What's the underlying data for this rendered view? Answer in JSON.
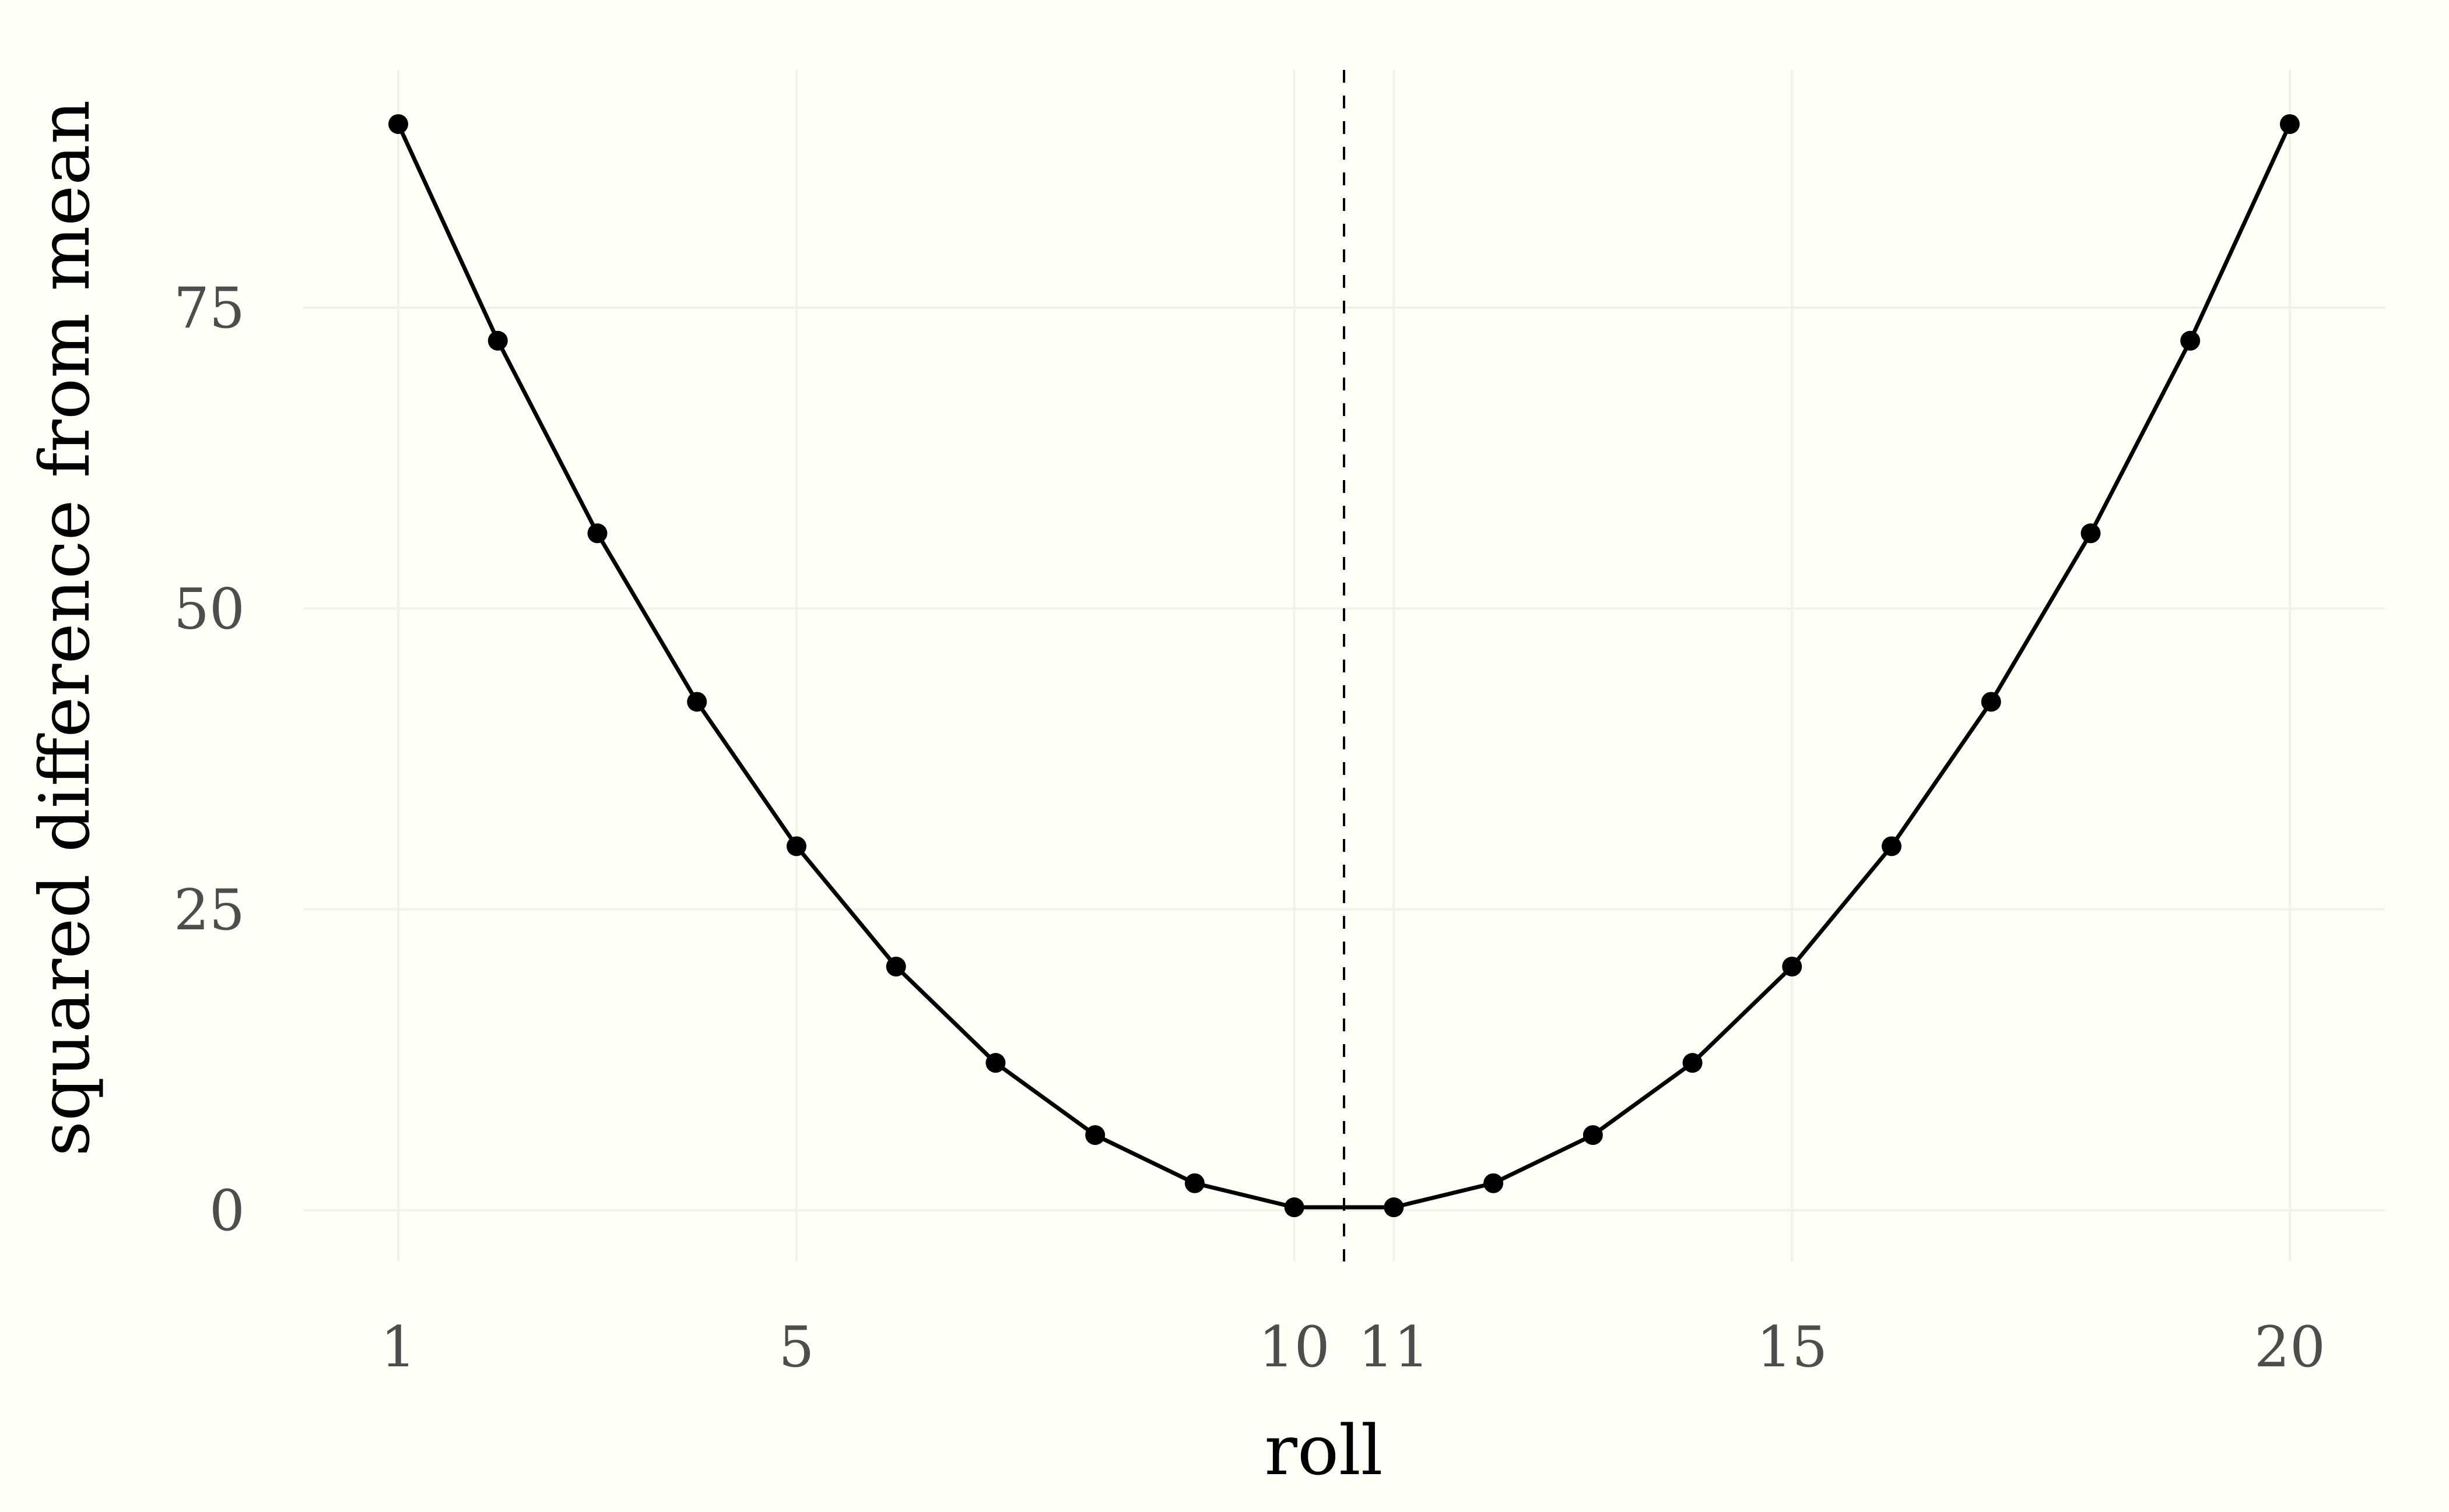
{
  "chart_data": {
    "type": "line",
    "title": "",
    "xlabel": "roll",
    "ylabel": "squared difference from mean",
    "x": [
      1,
      2,
      3,
      4,
      5,
      6,
      7,
      8,
      9,
      10,
      11,
      12,
      13,
      14,
      15,
      16,
      17,
      18,
      19,
      20
    ],
    "series": [
      {
        "values": [
          90.25,
          72.25,
          56.25,
          42.25,
          30.25,
          20.25,
          12.25,
          6.25,
          2.25,
          0.25,
          0.25,
          2.25,
          6.25,
          12.25,
          20.25,
          30.25,
          42.25,
          56.25,
          72.25,
          90.25
        ],
        "markers": true,
        "color": "#000000"
      }
    ],
    "x_ticks": [
      {
        "value": 1,
        "label": "1"
      },
      {
        "value": 5,
        "label": "5"
      },
      {
        "value": 10,
        "label": "10"
      },
      {
        "value": 11,
        "label": "11"
      },
      {
        "value": 15,
        "label": "15"
      },
      {
        "value": 20,
        "label": "20"
      }
    ],
    "y_ticks": [
      {
        "value": 0,
        "label": "0"
      },
      {
        "value": 25,
        "label": "25"
      },
      {
        "value": 50,
        "label": "50"
      },
      {
        "value": 75,
        "label": "75"
      }
    ],
    "reference_line": {
      "x": 10.5,
      "style": "dashed",
      "color": "#000000"
    },
    "xlim": [
      0.045,
      20.955
    ],
    "ylim": [
      -4.25,
      94.75
    ],
    "grid": true,
    "grid_color": "#f2f2ea",
    "background": "#fffff8",
    "legend": "none"
  }
}
